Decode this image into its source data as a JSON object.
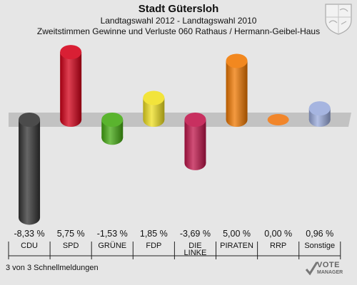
{
  "header": {
    "title": "Stadt Gütersloh",
    "subtitle": "Landtagswahl 2012 - Landtagswahl 2010",
    "description": "Zweitstimmen Gewinne und Verluste 060 Rathaus / Hermann-Geibel-Haus"
  },
  "chart_data": {
    "type": "bar",
    "categories": [
      "CDU",
      "SPD",
      "GRÜNE",
      "FDP",
      "DIE LINKE",
      "PIRATEN",
      "RRP",
      "Sonstige"
    ],
    "values": [
      -8.33,
      5.75,
      -1.53,
      1.85,
      -3.69,
      5.0,
      0.0,
      0.96
    ],
    "value_labels": [
      "-8,33 %",
      "5,75 %",
      "-1,53 %",
      "1,85 %",
      "-3,69 %",
      "5,00 %",
      "0,00 %",
      "0,96 %"
    ],
    "colors": [
      "#333333",
      "#d40018",
      "#44aa11",
      "#f0e020",
      "#c0144a",
      "#f07800",
      "#f08020",
      "#9aabdc"
    ],
    "ylim": [
      -9,
      6.5
    ]
  },
  "footer": {
    "text": "3 von 3 Schnellmeldungen"
  },
  "logo": {
    "text": "VOTE",
    "subtext": "MANAGER"
  },
  "icons": {
    "crest": "coat-of-arms-icon",
    "logo": "vote-checkmark-icon"
  }
}
